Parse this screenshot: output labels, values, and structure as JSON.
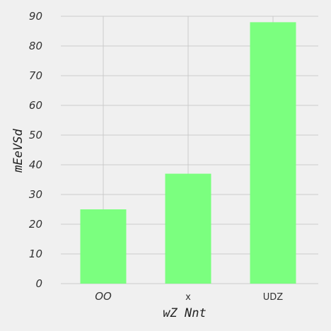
{
  "chart_data": {
    "type": "bar",
    "title": "",
    "xlabel": "wZ Nnt",
    "ylabel": "mEeVSd",
    "categories": [
      "OO",
      "x",
      "UDZ"
    ],
    "values": [
      25,
      37,
      88
    ],
    "ylim": [
      0,
      90
    ],
    "yticks": [
      "0",
      "10",
      "20",
      "30",
      "40",
      "50",
      "60",
      "70",
      "80",
      "90"
    ],
    "grid": true,
    "legend": "none",
    "bar_color": "#7bff7f",
    "grid_color": "#cbcbcb",
    "background": "#f0f0f0"
  }
}
